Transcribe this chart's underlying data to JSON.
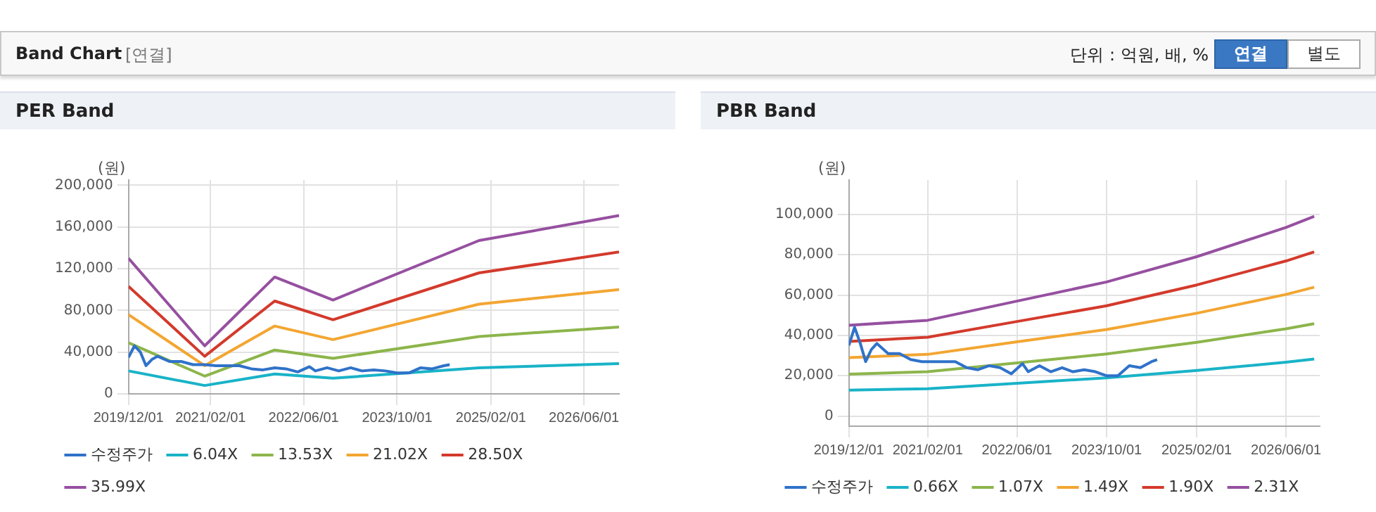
{
  "chart_data": [
    {
      "type": "line",
      "title": "PER Band",
      "ylabel": "(원)",
      "annotations": [
        "Band Chart",
        "[연결]",
        "단위 : 억원, 배, %",
        "연결",
        "별도"
      ],
      "xlim": [
        "2019-12-01",
        "2026-12-01"
      ],
      "xticks": [
        {
          "value": "2019-12-01",
          "label": "2019/12/01"
        },
        {
          "value": "2021-02-01",
          "label": "2021/02/01"
        },
        {
          "value": "2022-06-01",
          "label": "2022/06/01"
        },
        {
          "value": "2023-10-01",
          "label": "2023/10/01"
        },
        {
          "value": "2025-02-01",
          "label": "2025/02/01"
        },
        {
          "value": "2026-06-01",
          "label": "2026/06/01"
        }
      ],
      "ylim": [
        0,
        205000
      ],
      "yticks": [
        0,
        {
          "value": 40000,
          "label": "40,000"
        },
        {
          "value": 80000,
          "label": "80,000"
        },
        {
          "value": 120000,
          "label": "120,000"
        },
        {
          "value": 160000,
          "label": "160,000"
        },
        {
          "value": 200000,
          "label": "200,000"
        }
      ],
      "grid": true,
      "legend": "bottom",
      "marker": "none",
      "line_style": "solid",
      "series": [
        {
          "name": "수정주가",
          "color": "#2f72c9",
          "x": [
            "2019-12-01",
            "2020-01-01",
            "2020-02-01",
            "2020-03-01",
            "2020-04-01",
            "2020-05-01",
            "2020-07-01",
            "2020-09-01",
            "2020-11-01",
            "2021-01-01",
            "2021-03-01",
            "2021-05-01",
            "2021-07-01",
            "2021-09-01",
            "2021-11-01",
            "2022-01-01",
            "2022-03-01",
            "2022-05-01",
            "2022-07-01",
            "2022-08-01",
            "2022-10-01",
            "2022-12-01",
            "2023-02-01",
            "2023-04-01",
            "2023-06-01",
            "2023-08-01",
            "2023-10-01",
            "2023-12-01",
            "2024-02-01",
            "2024-04-01",
            "2024-06-01",
            "2024-07-01"
          ],
          "values": [
            35000,
            46000,
            40000,
            27000,
            33000,
            36000,
            31000,
            31000,
            28000,
            28000,
            27000,
            27000,
            27000,
            24000,
            23000,
            25000,
            24000,
            21000,
            26000,
            22000,
            25000,
            22000,
            25000,
            22000,
            23000,
            22000,
            20000,
            20000,
            25000,
            24000,
            27000,
            28000
          ]
        },
        {
          "name": "6.04X",
          "color": "#19b3c8",
          "x": [
            "2019-12-01",
            "2021-01-01",
            "2022-01-01",
            "2022-11-01",
            "2024-12-01",
            "2026-12-01"
          ],
          "values": [
            22000,
            8000,
            19000,
            15000,
            25000,
            29000
          ]
        },
        {
          "name": "13.53X",
          "color": "#8db54b",
          "x": [
            "2019-12-01",
            "2021-01-01",
            "2022-01-01",
            "2022-11-01",
            "2024-12-01",
            "2026-12-01"
          ],
          "values": [
            49000,
            17000,
            42000,
            34000,
            55000,
            64000
          ]
        },
        {
          "name": "21.02X",
          "color": "#f3a632",
          "x": [
            "2019-12-01",
            "2021-01-01",
            "2022-01-01",
            "2022-11-01",
            "2024-12-01",
            "2026-12-01"
          ],
          "values": [
            76000,
            27000,
            65000,
            52000,
            86000,
            100000
          ]
        },
        {
          "name": "28.50X",
          "color": "#d33a2c",
          "x": [
            "2019-12-01",
            "2021-01-01",
            "2022-01-01",
            "2022-11-01",
            "2024-12-01",
            "2026-12-01"
          ],
          "values": [
            103000,
            36000,
            89000,
            71000,
            116000,
            136000
          ]
        },
        {
          "name": "35.99X",
          "color": "#9650a0",
          "x": [
            "2019-12-01",
            "2021-01-01",
            "2022-01-01",
            "2022-11-01",
            "2024-12-01",
            "2026-12-01"
          ],
          "values": [
            130000,
            46000,
            112000,
            90000,
            147000,
            171000
          ]
        }
      ]
    },
    {
      "type": "line",
      "title": "PBR Band",
      "ylabel": "(원)",
      "xlim": [
        "2019-12-01",
        "2026-12-01"
      ],
      "xticks": [
        {
          "value": "2019-12-01",
          "label": "2019/12/01"
        },
        {
          "value": "2021-02-01",
          "label": "2021/02/01"
        },
        {
          "value": "2022-06-01",
          "label": "2022/06/01"
        },
        {
          "value": "2023-10-01",
          "label": "2023/10/01"
        },
        {
          "value": "2025-02-01",
          "label": "2025/02/01"
        },
        {
          "value": "2026-06-01",
          "label": "2026/06/01"
        }
      ],
      "ylim": [
        -5000,
        117000
      ],
      "yticks": [
        0,
        {
          "value": 20000,
          "label": "20,000"
        },
        {
          "value": 40000,
          "label": "40,000"
        },
        {
          "value": 60000,
          "label": "60,000"
        },
        {
          "value": 80000,
          "label": "80,000"
        },
        {
          "value": 100000,
          "label": "100,000"
        }
      ],
      "grid": true,
      "legend": "bottom",
      "marker": "none",
      "line_style": "solid",
      "series": [
        {
          "name": "수정주가",
          "color": "#2f72c9",
          "x": [
            "2019-12-01",
            "2020-01-01",
            "2020-02-01",
            "2020-03-01",
            "2020-04-01",
            "2020-05-01",
            "2020-07-01",
            "2020-09-01",
            "2020-11-01",
            "2021-01-01",
            "2021-03-01",
            "2021-05-01",
            "2021-07-01",
            "2021-09-01",
            "2021-11-01",
            "2022-01-01",
            "2022-03-01",
            "2022-05-01",
            "2022-07-01",
            "2022-08-01",
            "2022-10-01",
            "2022-12-01",
            "2023-02-01",
            "2023-04-01",
            "2023-06-01",
            "2023-08-01",
            "2023-10-01",
            "2023-12-01",
            "2024-02-01",
            "2024-04-01",
            "2024-06-01",
            "2024-07-01"
          ],
          "values": [
            35000,
            44000,
            36000,
            27000,
            33000,
            36000,
            31000,
            31000,
            28000,
            27000,
            27000,
            27000,
            27000,
            24000,
            23000,
            25000,
            24000,
            21000,
            26000,
            22000,
            25000,
            22000,
            24000,
            22000,
            23000,
            22000,
            20000,
            20000,
            25000,
            24000,
            27000,
            28000
          ]
        },
        {
          "name": "0.66X",
          "color": "#19b3c8",
          "x": [
            "2019-12-01",
            "2021-02-01",
            "2022-06-01",
            "2023-10-01",
            "2025-02-01",
            "2026-06-01",
            "2026-11-01"
          ],
          "values": [
            12900,
            13600,
            16300,
            19000,
            22600,
            26700,
            28300
          ]
        },
        {
          "name": "1.07X",
          "color": "#8db54b",
          "x": [
            "2019-12-01",
            "2021-02-01",
            "2022-06-01",
            "2023-10-01",
            "2025-02-01",
            "2026-06-01",
            "2026-11-01"
          ],
          "values": [
            20800,
            22000,
            26400,
            30800,
            36600,
            43300,
            45800
          ]
        },
        {
          "name": "1.49X",
          "color": "#f3a632",
          "x": [
            "2019-12-01",
            "2021-02-01",
            "2022-06-01",
            "2023-10-01",
            "2025-02-01",
            "2026-06-01",
            "2026-11-01"
          ],
          "values": [
            29000,
            30600,
            36800,
            42900,
            51000,
            60300,
            63900
          ]
        },
        {
          "name": "1.90X",
          "color": "#d33a2c",
          "x": [
            "2019-12-01",
            "2021-02-01",
            "2022-06-01",
            "2023-10-01",
            "2025-02-01",
            "2026-06-01",
            "2026-11-01"
          ],
          "values": [
            37000,
            39100,
            46900,
            54700,
            65000,
            76900,
            81400
          ]
        },
        {
          "name": "2.31X",
          "color": "#9650a0",
          "x": [
            "2019-12-01",
            "2021-02-01",
            "2022-06-01",
            "2023-10-01",
            "2025-02-01",
            "2026-06-01",
            "2026-11-01"
          ],
          "values": [
            45000,
            47500,
            57000,
            66500,
            79000,
            93500,
            99000
          ]
        }
      ]
    }
  ]
}
